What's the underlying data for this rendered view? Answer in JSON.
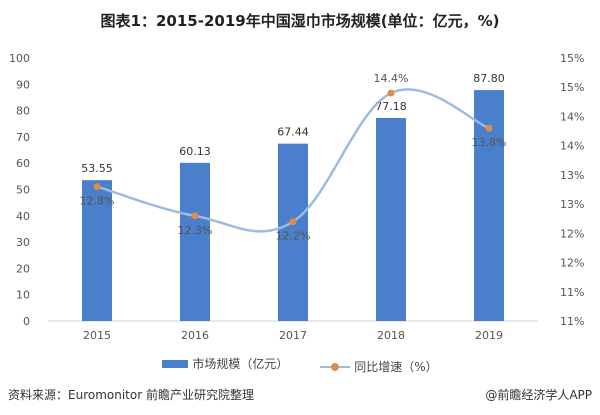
{
  "chart_data": {
    "type": "bar+line",
    "title": "图表1：2015-2019年中国湿巾市场规模(单位：亿元，%)",
    "categories": [
      "2015",
      "2016",
      "2017",
      "2018",
      "2019"
    ],
    "series": [
      {
        "name": "市场规模（亿元）",
        "type": "bar",
        "axis": "left",
        "values": [
          53.55,
          60.13,
          67.44,
          77.18,
          87.8
        ],
        "labels": [
          "53.55",
          "60.13",
          "67.44",
          "77.18",
          "87.80"
        ],
        "color": "#4a7fcc"
      },
      {
        "name": "同比增速（%）",
        "type": "line",
        "axis": "right",
        "values": [
          12.8,
          12.3,
          12.2,
          14.4,
          13.8
        ],
        "labels": [
          "12.8%",
          "12.3%",
          "12.2%",
          "14.4%",
          "13.8%"
        ],
        "color": "#9dbbe0",
        "marker_color": "#e08a4f"
      }
    ],
    "left_axis": {
      "ylim": [
        0,
        100
      ],
      "ticks": [
        "0",
        "10",
        "20",
        "30",
        "40",
        "50",
        "60",
        "70",
        "80",
        "90",
        "100"
      ]
    },
    "right_axis": {
      "ylim": [
        10.5,
        15.0
      ],
      "ticks": [
        "11%",
        "11%",
        "12%",
        "12%",
        "13%",
        "13%",
        "14%",
        "14%",
        "15%",
        "15%"
      ]
    },
    "grid": false,
    "legend": "bottom"
  },
  "footer": {
    "source": "资料来源：Euromonitor 前瞻产业研究院整理",
    "brand": "@前瞻经济学人APP"
  }
}
